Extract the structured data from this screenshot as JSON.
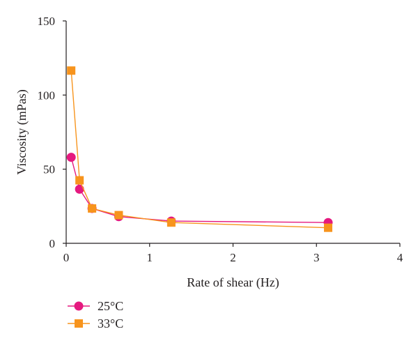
{
  "chart_data": {
    "type": "line",
    "title": "",
    "xlabel": "Rate of shear (Hz)",
    "ylabel": "Viscosity (mPas)",
    "xlim": [
      0,
      4
    ],
    "ylim": [
      0,
      150
    ],
    "x_ticks": [
      "0",
      "1",
      "2",
      "3",
      "4"
    ],
    "y_ticks": [
      "0",
      "50",
      "100",
      "150"
    ],
    "grid": false,
    "legend_position": "bottom-left",
    "series": [
      {
        "name": "25°C",
        "color": "#e5197f",
        "marker": "circle",
        "points": [
          [
            0.06,
            58
          ],
          [
            0.16,
            36.5
          ],
          [
            0.31,
            23.5
          ],
          [
            0.63,
            18
          ],
          [
            1.26,
            15
          ],
          [
            3.14,
            14
          ]
        ]
      },
      {
        "name": "33°C",
        "color": "#f7941d",
        "marker": "square",
        "points": [
          [
            0.06,
            116.5
          ],
          [
            0.16,
            42.5
          ],
          [
            0.31,
            23.5
          ],
          [
            0.63,
            19
          ],
          [
            1.26,
            14
          ],
          [
            3.14,
            10.5
          ]
        ]
      }
    ]
  }
}
